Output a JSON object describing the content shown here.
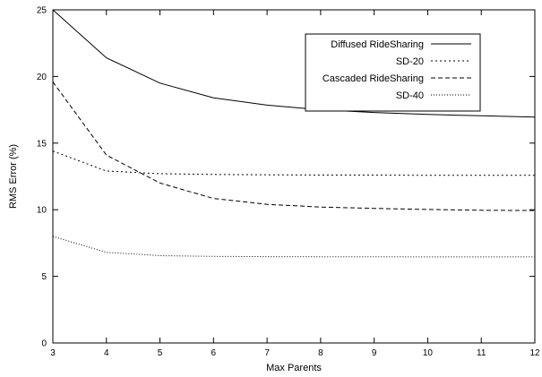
{
  "chart_data": {
    "type": "line",
    "title": "",
    "xlabel": "Max Parents",
    "ylabel": "RMS Error (%)",
    "xlim": [
      3,
      12
    ],
    "ylim": [
      0,
      25
    ],
    "x_ticks": [
      3,
      4,
      5,
      6,
      7,
      8,
      9,
      10,
      11,
      12
    ],
    "y_ticks": [
      0,
      5,
      10,
      15,
      20,
      25
    ],
    "grid": false,
    "legend_position": "top-right",
    "x": [
      3,
      4,
      5,
      6,
      7,
      8,
      9,
      10,
      11,
      12
    ],
    "series": [
      {
        "name": "Diffused RideSharing",
        "style": "solid",
        "values": [
          25.0,
          21.4,
          19.5,
          18.4,
          17.85,
          17.5,
          17.3,
          17.15,
          17.05,
          16.95
        ]
      },
      {
        "name": "SD-20",
        "style": "dotted",
        "values": [
          14.4,
          12.9,
          12.7,
          12.65,
          12.62,
          12.6,
          12.6,
          12.58,
          12.58,
          12.58
        ]
      },
      {
        "name": "Cascaded RideSharing",
        "style": "dashed",
        "values": [
          19.6,
          14.1,
          12.0,
          10.85,
          10.4,
          10.2,
          10.1,
          10.02,
          9.96,
          9.94
        ]
      },
      {
        "name": "SD-40",
        "style": "finedotted",
        "values": [
          8.0,
          6.8,
          6.55,
          6.5,
          6.48,
          6.47,
          6.47,
          6.46,
          6.46,
          6.46
        ]
      }
    ]
  }
}
